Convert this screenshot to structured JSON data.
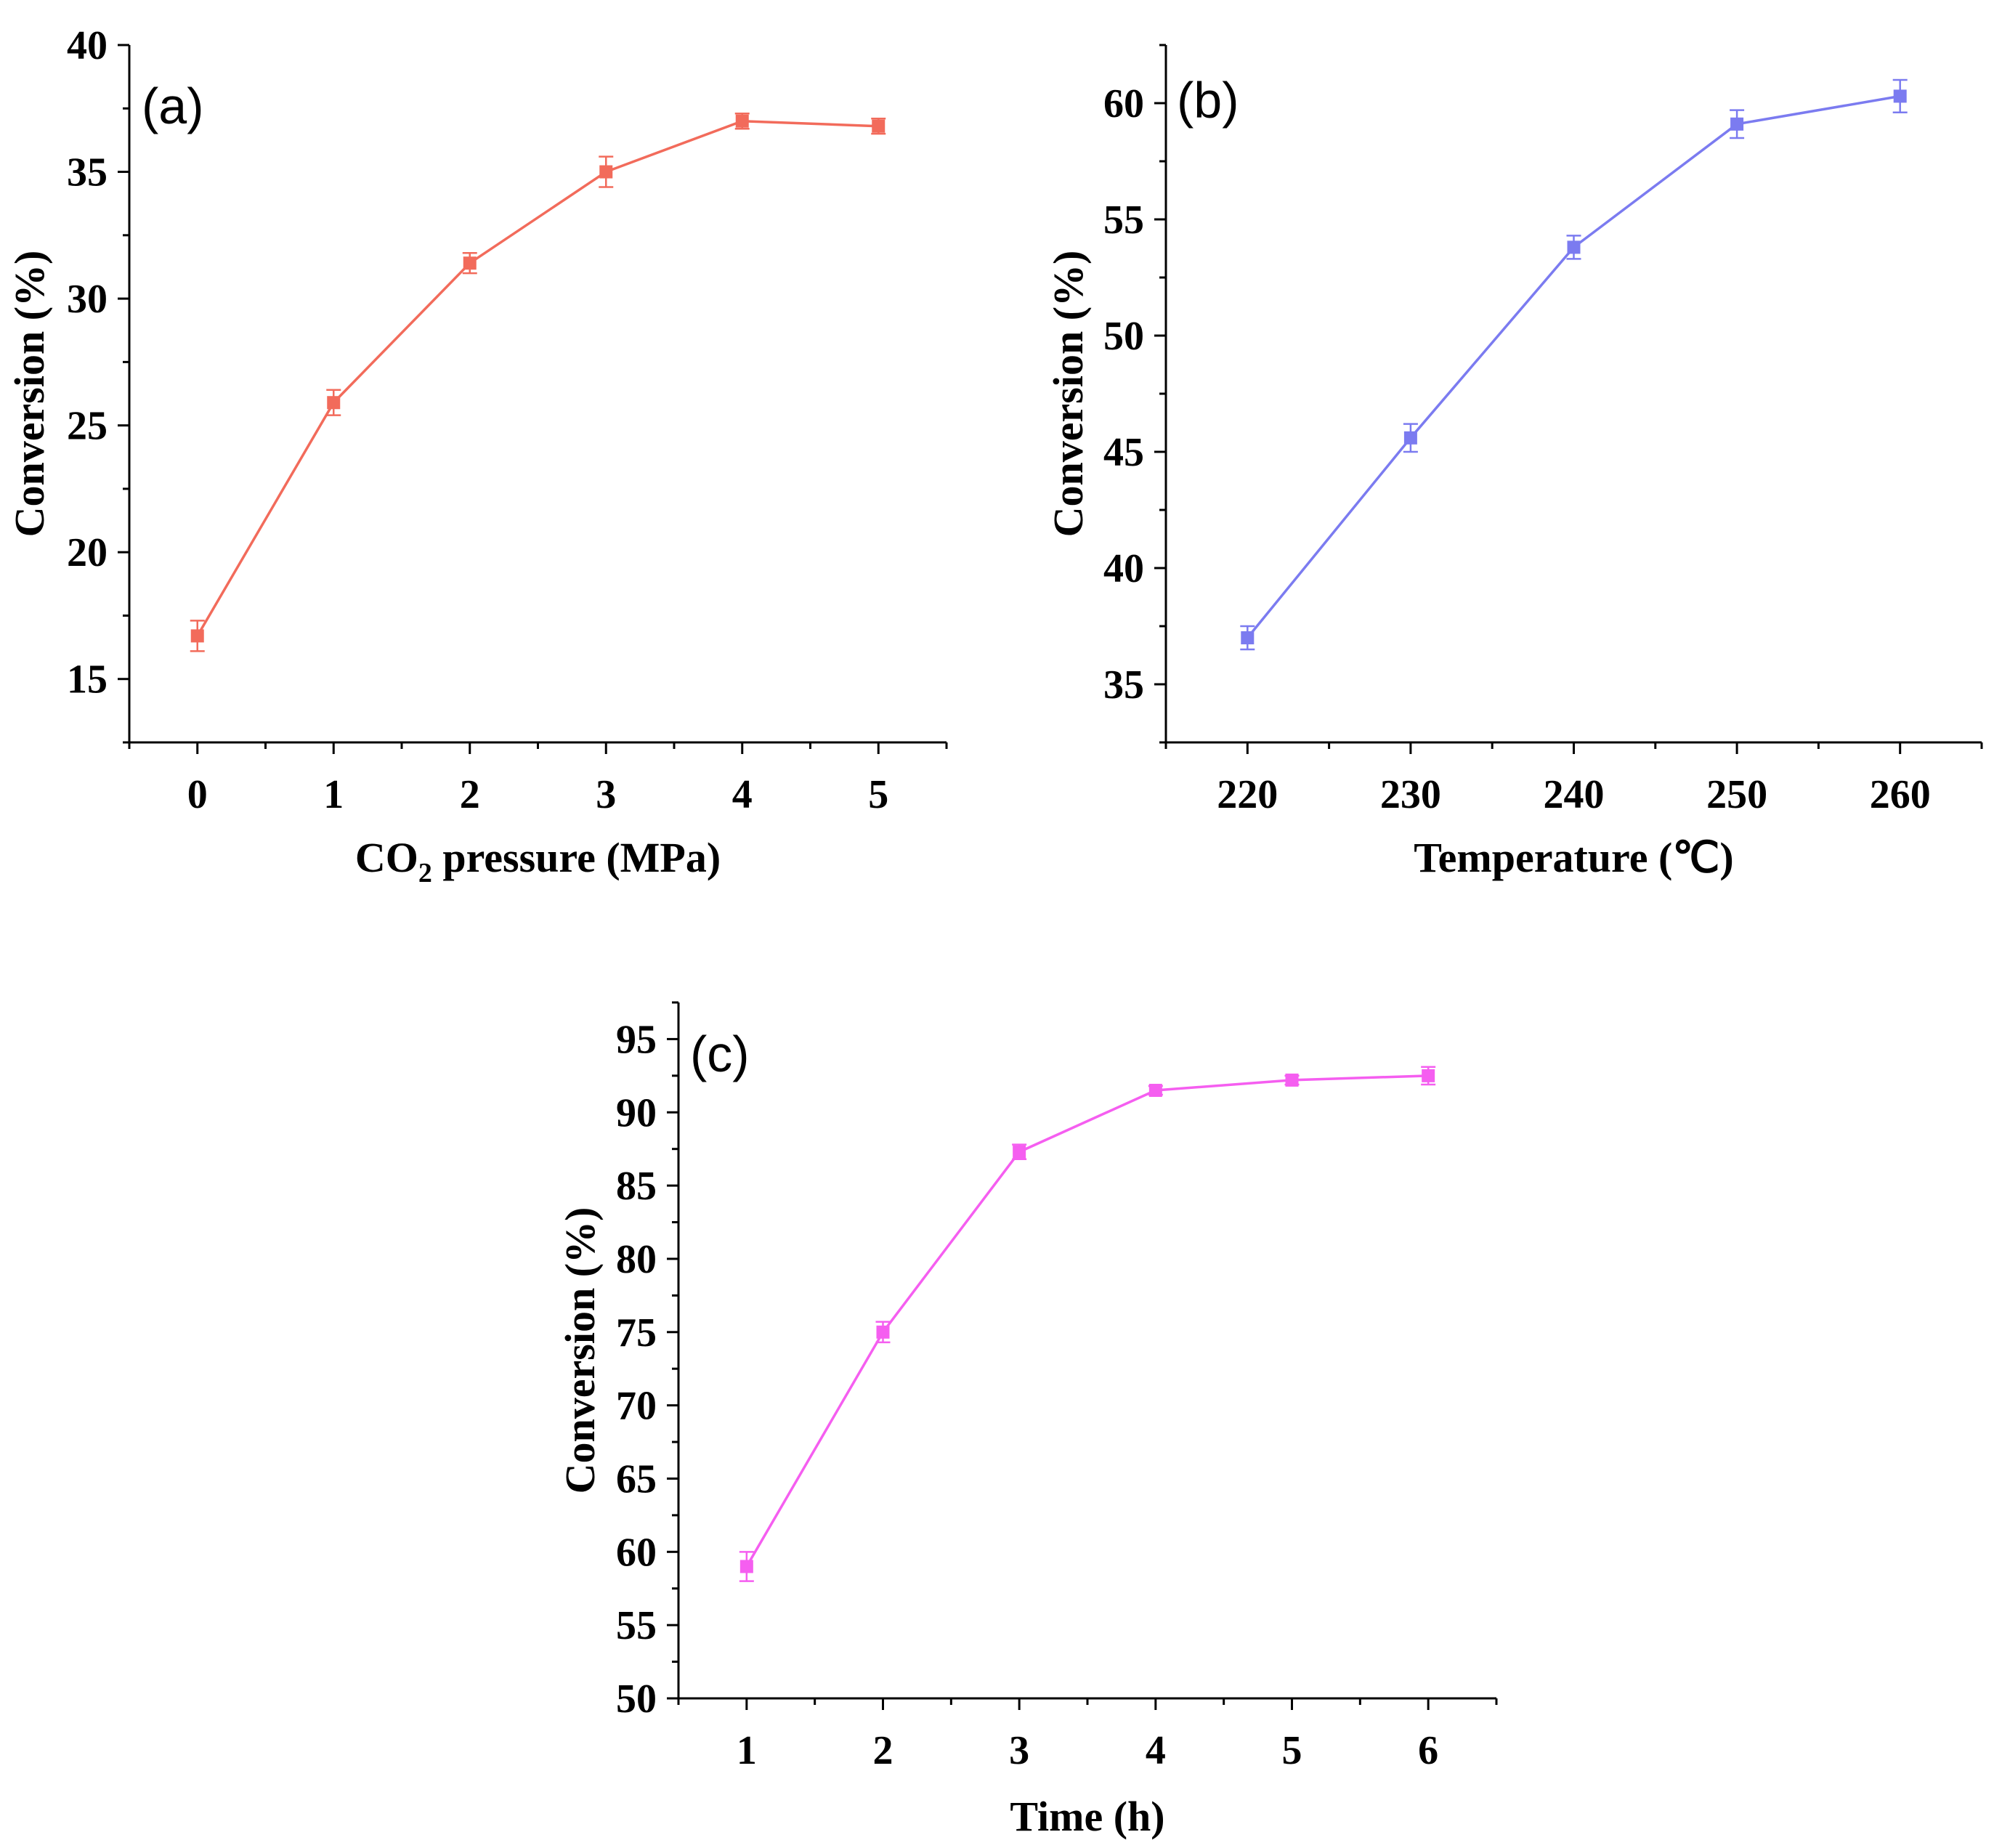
{
  "chart_data": [
    {
      "type": "line",
      "panel_label": "(a)",
      "title": "",
      "xlabel_prefix": "CO",
      "xlabel_sub": "2",
      "xlabel_suffix": " pressure (MPa)",
      "ylabel": "Conversion (%)",
      "xlim": [
        -0.5,
        5.5
      ],
      "ylim": [
        12.5,
        40
      ],
      "x_ticks": [
        0,
        1,
        2,
        3,
        4,
        5
      ],
      "x_tick_labels": [
        "0",
        "1",
        "2",
        "3",
        "4",
        "5"
      ],
      "y_ticks": [
        15,
        20,
        25,
        30,
        35,
        40
      ],
      "y_tick_labels": [
        "15",
        "20",
        "25",
        "30",
        "35",
        "40"
      ],
      "color": "#f26b5b",
      "series": [
        {
          "name": "Conversion",
          "x": [
            0,
            1,
            2,
            3,
            4,
            5
          ],
          "y": [
            16.7,
            25.9,
            31.4,
            35.0,
            37.0,
            36.8
          ],
          "err": [
            0.6,
            0.5,
            0.4,
            0.6,
            0.3,
            0.3
          ]
        }
      ]
    },
    {
      "type": "line",
      "panel_label": "(b)",
      "title": "",
      "xlabel": "Temperature (℃)",
      "ylabel": "Conversion (%)",
      "xlim": [
        215,
        265
      ],
      "ylim": [
        32.5,
        62.5
      ],
      "x_ticks": [
        220,
        230,
        240,
        250,
        260
      ],
      "x_tick_labels": [
        "220",
        "230",
        "240",
        "250",
        "260"
      ],
      "y_ticks": [
        35,
        40,
        45,
        50,
        55,
        60
      ],
      "y_tick_labels": [
        "35",
        "40",
        "45",
        "50",
        "55",
        "60"
      ],
      "color": "#7b7bf0",
      "series": [
        {
          "name": "Conversion",
          "x": [
            220,
            230,
            240,
            250,
            260
          ],
          "y": [
            37.0,
            45.6,
            53.8,
            59.1,
            60.3
          ],
          "err": [
            0.5,
            0.6,
            0.5,
            0.6,
            0.7
          ]
        }
      ]
    },
    {
      "type": "line",
      "panel_label": "(c)",
      "title": "",
      "xlabel": "Time (h)",
      "ylabel": "Conversion (%)",
      "xlim": [
        0.5,
        6.5
      ],
      "ylim": [
        50,
        97.5
      ],
      "x_ticks": [
        1,
        2,
        3,
        4,
        5,
        6
      ],
      "x_tick_labels": [
        "1",
        "2",
        "3",
        "4",
        "5",
        "6"
      ],
      "y_ticks": [
        50,
        55,
        60,
        65,
        70,
        75,
        80,
        85,
        90,
        95
      ],
      "y_tick_labels": [
        "50",
        "55",
        "60",
        "65",
        "70",
        "75",
        "80",
        "85",
        "90",
        "95"
      ],
      "color": "#f55ef0",
      "series": [
        {
          "name": "Conversion",
          "x": [
            1,
            2,
            3,
            4,
            5,
            6
          ],
          "y": [
            59.0,
            75.0,
            87.3,
            91.5,
            92.2,
            92.5
          ],
          "err": [
            1.0,
            0.7,
            0.5,
            0.3,
            0.3,
            0.6
          ]
        }
      ]
    }
  ]
}
